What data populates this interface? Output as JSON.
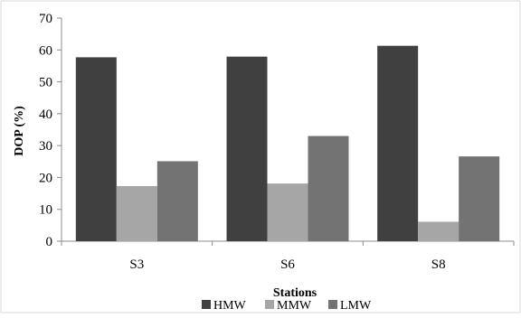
{
  "chart_data": {
    "type": "bar",
    "categories": [
      "S3",
      "S6",
      "S8"
    ],
    "series": [
      {
        "name": "HMW",
        "values": [
          57.7,
          57.9,
          61.3
        ],
        "color": "#404040"
      },
      {
        "name": "MMW",
        "values": [
          17.3,
          18.1,
          6.1
        ],
        "color": "#a6a6a6"
      },
      {
        "name": "LMW",
        "values": [
          25.1,
          33.0,
          26.6
        ],
        "color": "#737373"
      }
    ],
    "xlabel": "Stations",
    "ylabel": "DOP (%)",
    "ylim": [
      0,
      70
    ],
    "yticks": [
      0,
      10,
      20,
      30,
      40,
      50,
      60,
      70
    ],
    "grid": false,
    "legend": "bottom",
    "frame": true
  }
}
